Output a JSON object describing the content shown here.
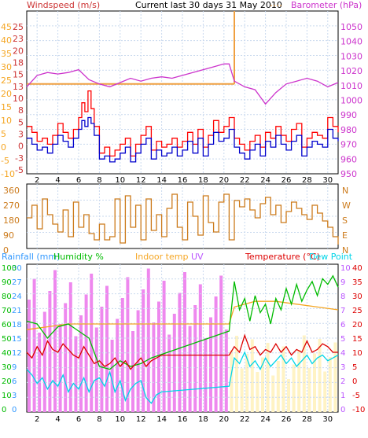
{
  "header": {
    "left_label": "Windspeed (m/s)",
    "center_label": "Current last 30 days 31 May 2010",
    "right_label": "Barometer (hPa)"
  },
  "colors": {
    "wind_axis": "#cc3333",
    "gust": "#ff0000",
    "avg_wind": "#0000cc",
    "barometer": "#cc33cc",
    "dir": "#cc7a1a",
    "rain_axis": "#3399ff",
    "humidity": "#00bb00",
    "indoor": "#f5a623",
    "uv": "#bb55ff",
    "temp": "#dd0000",
    "dew": "#00d5e8",
    "grid": "#c9d9ee",
    "frame": "#000000",
    "cursor": "#f0a040"
  },
  "chart_data": [
    {
      "type": "line",
      "title": "Current last 30 days 31 May 2010",
      "xlabel": "",
      "x_ticks": [
        "2",
        "4",
        "6",
        "8",
        "10",
        "12",
        "14",
        "16",
        "18",
        "20",
        "22",
        "24",
        "26",
        "28",
        "30"
      ],
      "x_range": [
        1,
        31
      ],
      "left_axis": {
        "label": "Windspeed (m/s)",
        "inner_ticks": [
          "25",
          "23",
          "20",
          "18",
          "15",
          "13",
          "10",
          "8",
          "5",
          "3",
          "0",
          "-3",
          "-5"
        ],
        "outer_ticks": [
          "45",
          "40",
          "35",
          "30",
          "25",
          "20",
          "15",
          "10",
          "5",
          "0",
          "-5",
          "-10"
        ],
        "ylim": [
          -10,
          45
        ]
      },
      "right_axis": {
        "label": "Barometer (hPa)",
        "ticks": [
          "1050",
          "1040",
          "1030",
          "1020",
          "1010",
          "1000",
          "990",
          "980",
          "970",
          "960",
          "950"
        ],
        "ylim": [
          950,
          1050
        ]
      },
      "series": [
        {
          "name": "Barometer (hPa)",
          "x": [
            1,
            2,
            3,
            4,
            5,
            6,
            7,
            8,
            9,
            10,
            11,
            12,
            13,
            14,
            15,
            16,
            17,
            18,
            19,
            20,
            20.5,
            21,
            22,
            23,
            24,
            25,
            26,
            27,
            28,
            29,
            30,
            31
          ],
          "values": [
            1008,
            1016,
            1018,
            1017,
            1018,
            1020,
            1013,
            1010,
            1008,
            1011,
            1014,
            1012,
            1014,
            1015,
            1014,
            1016,
            1018,
            1020,
            1022,
            1024,
            1024,
            1012,
            1008,
            1006,
            996,
            1004,
            1010,
            1012,
            1014,
            1012,
            1008,
            1011
          ]
        },
        {
          "name": "Gust",
          "x": [
            1,
            1.5,
            2,
            2.5,
            3,
            3.5,
            4,
            4.5,
            5,
            5.5,
            6,
            6.3,
            6.6,
            6.9,
            7.2,
            7.5,
            8,
            8.5,
            9,
            9.5,
            10,
            10.5,
            11,
            11.5,
            12,
            12.5,
            13,
            13.5,
            14,
            14.5,
            15,
            15.5,
            16,
            16.5,
            17,
            17.5,
            18,
            18.5,
            19,
            19.5,
            20,
            20.5,
            21,
            21.5,
            22,
            22.5,
            23,
            23.5,
            24,
            24.5,
            25,
            25.5,
            26,
            26.5,
            27,
            27.5,
            28,
            28.5,
            29,
            29.5,
            30,
            30.5,
            31
          ],
          "values": [
            6,
            4,
            1,
            2,
            0,
            3,
            7,
            4,
            2,
            5,
            9,
            14,
            11,
            18,
            12,
            6,
            -3,
            -1,
            -4,
            -2,
            0,
            2,
            -4,
            0,
            3,
            6,
            -2,
            1,
            -1,
            0,
            2,
            -1,
            1,
            4,
            0,
            5,
            -1,
            3,
            8,
            4,
            6,
            9,
            2,
            0,
            -2,
            1,
            3,
            -1,
            4,
            2,
            6,
            3,
            1,
            5,
            7,
            -1,
            2,
            4,
            3,
            2,
            9,
            6,
            4
          ]
        },
        {
          "name": "Average wind",
          "x": [
            1,
            1.5,
            2,
            2.5,
            3,
            3.5,
            4,
            4.5,
            5,
            5.5,
            6,
            6.3,
            6.6,
            6.9,
            7.2,
            7.5,
            8,
            8.5,
            9,
            9.5,
            10,
            10.5,
            11,
            11.5,
            12,
            12.5,
            13,
            13.5,
            14,
            14.5,
            15,
            15.5,
            16,
            16.5,
            17,
            17.5,
            18,
            18.5,
            19,
            19.5,
            20,
            20.5,
            21,
            21.5,
            22,
            22.5,
            23,
            23.5,
            24,
            24.5,
            25,
            25.5,
            26,
            26.5,
            27,
            27.5,
            28,
            28.5,
            29,
            29.5,
            30,
            30.5,
            31
          ],
          "values": [
            2,
            0,
            -2,
            -1,
            -3,
            0,
            3,
            1,
            -1,
            2,
            5,
            8,
            6,
            9,
            7,
            3,
            -5,
            -4,
            -6,
            -5,
            -3,
            -1,
            -6,
            -3,
            0,
            2,
            -5,
            -2,
            -4,
            -3,
            -1,
            -4,
            -2,
            1,
            -3,
            2,
            -4,
            0,
            4,
            1,
            2,
            5,
            -1,
            -3,
            -5,
            -2,
            0,
            -4,
            1,
            -1,
            3,
            0,
            -2,
            1,
            3,
            -4,
            -1,
            1,
            0,
            -1,
            5,
            2,
            1
          ]
        }
      ]
    },
    {
      "type": "line",
      "title": "",
      "xlabel": "",
      "left_axis": {
        "label": "",
        "ticks": [
          "360",
          "270",
          "180",
          "90",
          "0"
        ],
        "ylim": [
          0,
          360
        ]
      },
      "right_axis": {
        "label": "",
        "ticks": [
          "N",
          "W",
          "S",
          "E",
          "N"
        ]
      },
      "series": [
        {
          "name": "",
          "x": [
            1,
            1.5,
            2,
            2.5,
            3,
            3.5,
            4,
            4.5,
            5,
            5.5,
            6,
            6.5,
            7,
            7.5,
            8,
            8.5,
            9,
            9.5,
            10,
            10.5,
            11,
            11.5,
            12,
            12.5,
            13,
            13.5,
            14,
            14.5,
            15,
            15.5,
            16,
            16.5,
            17,
            17.5,
            18,
            18.5,
            19,
            19.5,
            20,
            20.5,
            21,
            21.5,
            22,
            22.5,
            23,
            23.5,
            24,
            24.5,
            25,
            25.5,
            26,
            26.5,
            27,
            27.5,
            28,
            28.5,
            29,
            29.5,
            30,
            30.5,
            31
          ],
          "values": [
            180,
            260,
            110,
            300,
            200,
            140,
            90,
            230,
            60,
            280,
            120,
            200,
            80,
            40,
            140,
            40,
            60,
            300,
            20,
            320,
            120,
            260,
            40,
            300,
            100,
            200,
            60,
            240,
            330,
            120,
            40,
            280,
            190,
            70,
            320,
            150,
            90,
            280,
            330,
            40,
            290,
            250,
            300,
            230,
            180,
            270,
            310,
            200,
            260,
            150,
            220,
            280,
            240,
            200,
            170,
            260,
            210,
            160,
            120,
            60,
            10
          ]
        }
      ]
    },
    {
      "type": "line",
      "title": "",
      "xlabel": "",
      "axes": {
        "rainfall": {
          "label": "Rainfall (mm)",
          "ticks": [
            "30",
            "27",
            "24",
            "21",
            "18",
            "15",
            "12",
            "9",
            "6",
            "3",
            "0"
          ],
          "ylim": [
            0,
            30
          ]
        },
        "humidity": {
          "label": "Humidity %",
          "ticks": [
            "100",
            "90",
            "80",
            "70",
            "60",
            "50",
            "40",
            "30",
            "20",
            "10",
            "0"
          ],
          "ylim": [
            0,
            100
          ]
        },
        "uv": {
          "label": "UV",
          "ticks": [
            "10",
            "9",
            "8",
            "7",
            "6",
            "5",
            "4",
            "3",
            "2",
            "1",
            "0"
          ],
          "ylim": [
            0,
            10
          ]
        },
        "temperature": {
          "label": "Temperature (°C)",
          "ticks": [
            "40",
            "35",
            "30",
            "25",
            "20",
            "15",
            "10",
            "5",
            "0",
            "-5",
            "-10"
          ],
          "ylim": [
            -10,
            40
          ]
        }
      },
      "legend": [
        "Rainfall (mm)",
        "Humidity %",
        "Indoor temp",
        "UV",
        "Temperature (°C)",
        "Dew Point"
      ],
      "series": [
        {
          "name": "Temperature (°C)",
          "x": [
            1,
            1.5,
            2,
            2.5,
            3,
            3.5,
            4,
            4.5,
            5,
            5.5,
            6,
            6.5,
            7,
            7.5,
            8,
            8.5,
            9,
            9.5,
            10,
            10.5,
            11,
            11.5,
            12,
            12.5,
            13,
            14,
            15,
            16,
            17,
            18,
            19,
            20,
            20.5,
            21,
            21.5,
            22,
            22.5,
            23,
            23.5,
            24,
            24.5,
            25,
            25.5,
            26,
            26.5,
            27,
            27.5,
            28,
            28.5,
            29,
            29.5,
            30,
            30.5,
            31
          ],
          "values": [
            10,
            8,
            12,
            9,
            14,
            11,
            10,
            13,
            11,
            9,
            8,
            12,
            9,
            6,
            7,
            5,
            6,
            8,
            5,
            7,
            4,
            6,
            8,
            5,
            7,
            9,
            9,
            9,
            9,
            9,
            9,
            9,
            9,
            12,
            10,
            16,
            11,
            12,
            9,
            11,
            10,
            13,
            10,
            12,
            9,
            11,
            10,
            14,
            10,
            11,
            13,
            12,
            10,
            10
          ]
        },
        {
          "name": "Dew Point",
          "x": [
            1,
            1.5,
            2,
            2.5,
            3,
            3.5,
            4,
            4.5,
            5,
            5.5,
            6,
            6.5,
            7,
            7.5,
            8,
            8.5,
            9,
            9.5,
            10,
            10.5,
            11,
            11.5,
            12,
            12.5,
            13,
            13.5,
            14,
            20.5,
            21,
            21.5,
            22,
            22.5,
            23,
            23.5,
            24,
            24.5,
            25,
            25.5,
            26,
            26.5,
            27,
            27.5,
            28,
            28.5,
            29,
            29.5,
            30,
            30.5,
            31
          ],
          "values": [
            4,
            2,
            -1,
            1,
            -3,
            0,
            -2,
            2,
            -4,
            -1,
            -3,
            1,
            -4,
            0,
            1,
            -2,
            3,
            -4,
            0,
            -7,
            -3,
            -1,
            0,
            -6,
            -8,
            -5,
            -4,
            -2,
            8,
            6,
            10,
            5,
            7,
            4,
            8,
            5,
            7,
            9,
            6,
            8,
            5,
            7,
            9,
            6,
            8,
            9,
            7,
            8,
            9
          ]
        },
        {
          "name": "Humidity %",
          "x": [
            1,
            2,
            3,
            4,
            5,
            6,
            7,
            8,
            9,
            10,
            11,
            12,
            13,
            20.5,
            21,
            21.5,
            22,
            22.5,
            23,
            23.5,
            24,
            24.5,
            25,
            25.5,
            26,
            26.5,
            27,
            27.5,
            28,
            28.5,
            29,
            29.5,
            30,
            30.5,
            31
          ],
          "values": [
            62,
            60,
            50,
            58,
            60,
            55,
            50,
            30,
            28,
            34,
            30,
            32,
            36,
            55,
            90,
            70,
            78,
            62,
            80,
            68,
            74,
            60,
            78,
            70,
            85,
            74,
            88,
            76,
            84,
            90,
            80,
            92,
            88,
            94,
            86
          ]
        },
        {
          "name": "Indoor temp",
          "x": [
            1,
            5,
            10,
            14,
            20.5,
            21,
            23,
            25,
            27,
            29,
            31
          ],
          "values": [
            18,
            20,
            20,
            20,
            20,
            26,
            28,
            28,
            27,
            26,
            25
          ]
        }
      ]
    }
  ]
}
